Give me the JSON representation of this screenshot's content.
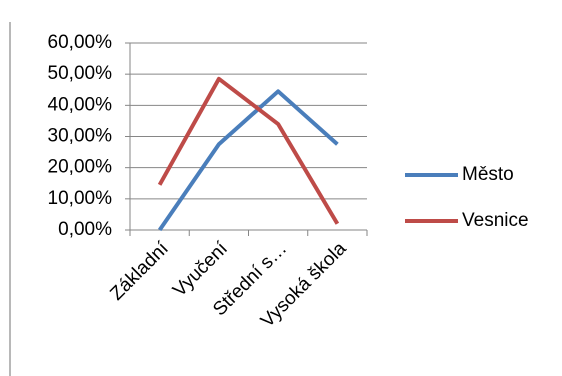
{
  "chart_data": {
    "type": "line",
    "categories": [
      "Základní",
      "Vyučení",
      "Střední s…",
      "Vysoká škola"
    ],
    "series": [
      {
        "name": "Město",
        "color": "#4a7ebb",
        "values": [
          0,
          27.5,
          44.5,
          27.5
        ]
      },
      {
        "name": "Vesnice",
        "color": "#be4b48",
        "values": [
          14.5,
          48.5,
          34,
          2
        ]
      }
    ],
    "ylim": [
      0,
      60
    ],
    "yticks": [
      {
        "value": 0,
        "label": "0,00%"
      },
      {
        "value": 10,
        "label": "10,00%"
      },
      {
        "value": 20,
        "label": "20,00%"
      },
      {
        "value": 30,
        "label": "30,00%"
      },
      {
        "value": 40,
        "label": "40,00%"
      },
      {
        "value": 50,
        "label": "50,00%"
      },
      {
        "value": 60,
        "label": "60,00%"
      }
    ],
    "grid": true,
    "legend": "right"
  }
}
